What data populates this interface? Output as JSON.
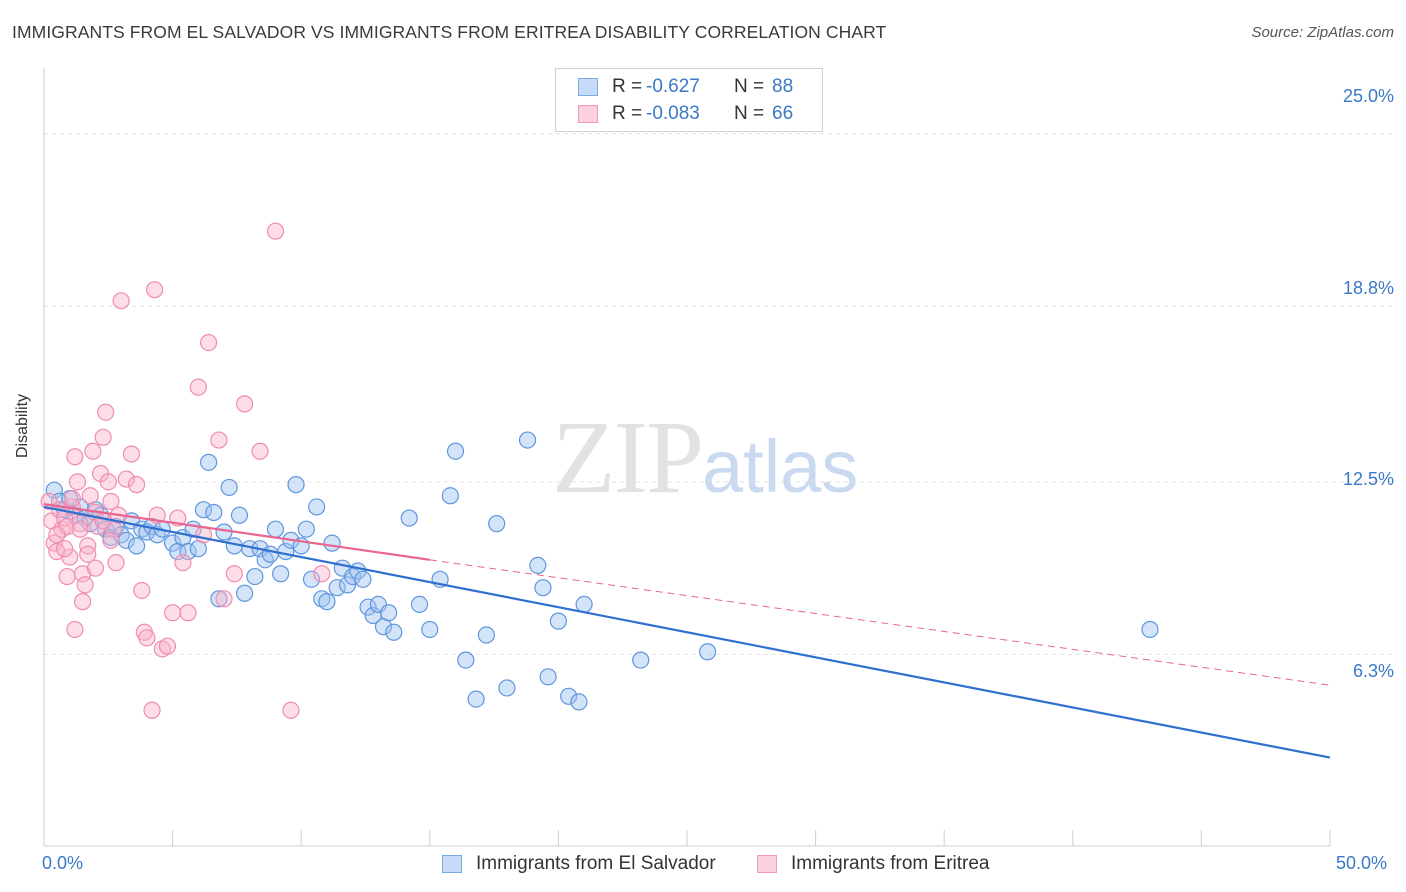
{
  "title": "IMMIGRANTS FROM EL SALVADOR VS IMMIGRANTS FROM ERITREA DISABILITY CORRELATION CHART",
  "source": "Source: ZipAtlas.com",
  "watermark": {
    "zip": "ZIP",
    "atlas": "atlas"
  },
  "legend": {
    "rows": [
      {
        "r_label": "R =",
        "r_value": "-0.627",
        "n_label": "N =",
        "n_value": "88",
        "color": "#7aa8e8",
        "fill": "#c6dbf7"
      },
      {
        "r_label": "R =",
        "r_value": "-0.083",
        "n_label": "N =",
        "n_value": "66",
        "color": "#f29ab8",
        "fill": "#fbd0df"
      }
    ]
  },
  "bottom_legend": {
    "items": [
      {
        "label": "Immigrants from El Salvador",
        "color": "#7aa8e8",
        "fill": "#c6dbf7"
      },
      {
        "label": "Immigrants from Eritrea",
        "color": "#f29ab8",
        "fill": "#fbd0df"
      }
    ]
  },
  "axes": {
    "ylabel": "Disability",
    "x_min_label": "0.0%",
    "x_max_label": "50.0%",
    "y_ticks": [
      "25.0%",
      "18.8%",
      "12.5%",
      "6.3%"
    ]
  },
  "chart_data": {
    "type": "scatter",
    "title": "IMMIGRANTS FROM EL SALVADOR VS IMMIGRANTS FROM ERITREA DISABILITY CORRELATION CHART",
    "xlabel": "",
    "ylabel": "Disability",
    "xlim": [
      0,
      50
    ],
    "ylim": [
      0,
      27
    ],
    "y_ticks": [
      6.3,
      12.5,
      18.8,
      25.0
    ],
    "grid": true,
    "colors": {
      "el_salvador": "#3a78c8",
      "eritrea": "#e8658f"
    },
    "series": [
      {
        "name": "Immigrants from El Salvador",
        "color": "#3a78c8",
        "trend": {
          "x": [
            0,
            50
          ],
          "y": [
            11.6,
            2.6
          ],
          "style": "solid"
        },
        "points": [
          [
            0.4,
            12.2
          ],
          [
            0.6,
            11.8
          ],
          [
            0.8,
            11.5
          ],
          [
            1.0,
            11.9
          ],
          [
            1.2,
            11.3
          ],
          [
            1.4,
            11.6
          ],
          [
            1.6,
            11.2
          ],
          [
            1.8,
            11.0
          ],
          [
            2.0,
            11.5
          ],
          [
            2.2,
            11.3
          ],
          [
            2.4,
            10.8
          ],
          [
            2.6,
            10.5
          ],
          [
            2.8,
            10.9
          ],
          [
            3.0,
            10.6
          ],
          [
            3.2,
            10.4
          ],
          [
            3.4,
            11.1
          ],
          [
            3.6,
            10.2
          ],
          [
            3.8,
            10.8
          ],
          [
            4.0,
            10.7
          ],
          [
            4.2,
            10.9
          ],
          [
            4.4,
            10.6
          ],
          [
            4.6,
            10.8
          ],
          [
            5.0,
            10.3
          ],
          [
            5.2,
            10.0
          ],
          [
            5.4,
            10.5
          ],
          [
            5.6,
            10.0
          ],
          [
            5.8,
            10.8
          ],
          [
            6.0,
            10.1
          ],
          [
            6.2,
            11.5
          ],
          [
            6.4,
            13.2
          ],
          [
            6.6,
            11.4
          ],
          [
            6.8,
            8.3
          ],
          [
            7.0,
            10.7
          ],
          [
            7.2,
            12.3
          ],
          [
            7.4,
            10.2
          ],
          [
            7.6,
            11.3
          ],
          [
            7.8,
            8.5
          ],
          [
            8.0,
            10.1
          ],
          [
            8.2,
            9.1
          ],
          [
            8.4,
            10.1
          ],
          [
            8.6,
            9.7
          ],
          [
            8.8,
            9.9
          ],
          [
            9.0,
            10.8
          ],
          [
            9.2,
            9.2
          ],
          [
            9.4,
            10.0
          ],
          [
            9.6,
            10.4
          ],
          [
            9.8,
            12.4
          ],
          [
            10.0,
            10.2
          ],
          [
            10.2,
            10.8
          ],
          [
            10.4,
            9.0
          ],
          [
            10.6,
            11.6
          ],
          [
            10.8,
            8.3
          ],
          [
            11.0,
            8.2
          ],
          [
            11.2,
            10.3
          ],
          [
            11.4,
            8.7
          ],
          [
            11.6,
            9.4
          ],
          [
            11.8,
            8.8
          ],
          [
            12.0,
            9.1
          ],
          [
            12.2,
            9.3
          ],
          [
            12.4,
            9.0
          ],
          [
            12.6,
            8.0
          ],
          [
            12.8,
            7.7
          ],
          [
            13.0,
            8.1
          ],
          [
            13.2,
            7.3
          ],
          [
            13.4,
            7.8
          ],
          [
            13.6,
            7.1
          ],
          [
            14.2,
            11.2
          ],
          [
            14.6,
            8.1
          ],
          [
            15.0,
            7.2
          ],
          [
            15.4,
            9.0
          ],
          [
            15.8,
            12.0
          ],
          [
            16.0,
            13.6
          ],
          [
            16.4,
            6.1
          ],
          [
            16.8,
            4.7
          ],
          [
            17.2,
            7.0
          ],
          [
            17.6,
            11.0
          ],
          [
            18.0,
            5.1
          ],
          [
            18.8,
            14.0
          ],
          [
            19.2,
            9.5
          ],
          [
            19.4,
            8.7
          ],
          [
            19.6,
            5.5
          ],
          [
            20.0,
            7.5
          ],
          [
            20.4,
            4.8
          ],
          [
            20.8,
            4.6
          ],
          [
            21.0,
            8.1
          ],
          [
            23.2,
            6.1
          ],
          [
            25.8,
            6.4
          ],
          [
            43.0,
            7.2
          ]
        ]
      },
      {
        "name": "Immigrants from Eritrea",
        "color": "#e8658f",
        "trend": {
          "x": [
            0,
            15
          ],
          "y": [
            11.7,
            9.7
          ],
          "style": "solid"
        },
        "trend_extension": {
          "x": [
            15,
            50
          ],
          "y": [
            9.7,
            5.2
          ],
          "style": "dashed"
        },
        "points": [
          [
            0.2,
            11.8
          ],
          [
            0.3,
            11.1
          ],
          [
            0.4,
            10.3
          ],
          [
            0.5,
            10.0
          ],
          [
            0.6,
            11.5
          ],
          [
            0.7,
            10.8
          ],
          [
            0.8,
            11.2
          ],
          [
            0.9,
            10.9
          ],
          [
            1.0,
            9.8
          ],
          [
            1.1,
            11.6
          ],
          [
            1.2,
            13.4
          ],
          [
            1.3,
            12.5
          ],
          [
            1.4,
            11.0
          ],
          [
            1.5,
            9.2
          ],
          [
            1.6,
            8.8
          ],
          [
            1.7,
            10.2
          ],
          [
            1.8,
            12.0
          ],
          [
            1.9,
            13.6
          ],
          [
            2.0,
            11.4
          ],
          [
            2.1,
            10.9
          ],
          [
            2.2,
            12.8
          ],
          [
            2.3,
            14.1
          ],
          [
            2.4,
            15.0
          ],
          [
            2.5,
            12.5
          ],
          [
            2.6,
            11.8
          ],
          [
            2.7,
            10.8
          ],
          [
            2.8,
            9.6
          ],
          [
            2.9,
            11.3
          ],
          [
            3.0,
            19.0
          ],
          [
            3.2,
            12.6
          ],
          [
            3.4,
            13.5
          ],
          [
            3.6,
            12.4
          ],
          [
            3.8,
            8.6
          ],
          [
            3.9,
            7.1
          ],
          [
            4.0,
            6.9
          ],
          [
            4.2,
            4.3
          ],
          [
            4.3,
            19.4
          ],
          [
            4.4,
            11.3
          ],
          [
            4.6,
            6.5
          ],
          [
            4.8,
            6.6
          ],
          [
            5.0,
            7.8
          ],
          [
            5.2,
            11.2
          ],
          [
            5.4,
            9.6
          ],
          [
            5.6,
            7.8
          ],
          [
            6.0,
            15.9
          ],
          [
            6.2,
            10.6
          ],
          [
            6.4,
            17.5
          ],
          [
            6.8,
            14.0
          ],
          [
            7.0,
            8.3
          ],
          [
            7.4,
            9.2
          ],
          [
            7.8,
            15.3
          ],
          [
            8.4,
            13.6
          ],
          [
            9.0,
            21.5
          ],
          [
            9.6,
            4.3
          ],
          [
            10.8,
            9.2
          ],
          [
            0.5,
            10.6
          ],
          [
            0.8,
            10.1
          ],
          [
            1.1,
            11.9
          ],
          [
            1.4,
            10.8
          ],
          [
            1.7,
            9.9
          ],
          [
            2.0,
            9.4
          ],
          [
            2.3,
            11.1
          ],
          [
            2.6,
            10.4
          ],
          [
            1.2,
            7.2
          ],
          [
            1.5,
            8.2
          ],
          [
            0.9,
            9.1
          ]
        ]
      }
    ]
  }
}
